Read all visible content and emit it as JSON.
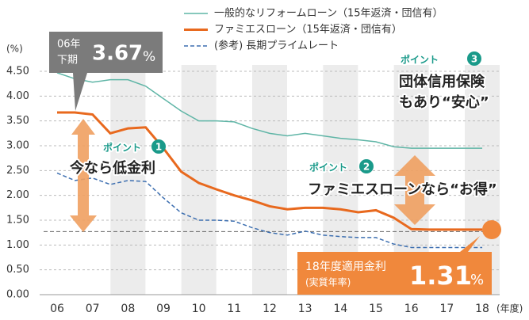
{
  "chart_data": {
    "type": "line",
    "y_unit_label": "(%)",
    "x_unit_label": "(年度)",
    "x": [
      6,
      6.5,
      7,
      7.5,
      8,
      8.5,
      9,
      9.5,
      10,
      10.5,
      11,
      11.5,
      12,
      12.5,
      13,
      13.5,
      14,
      14.5,
      15,
      15.5,
      16,
      16.5,
      17,
      17.5,
      18
    ],
    "xlim": [
      5.78,
      18.5
    ],
    "xticks": [
      {
        "value": 6,
        "label": "06"
      },
      {
        "value": 7,
        "label": "07"
      },
      {
        "value": 8,
        "label": "08"
      },
      {
        "value": 9,
        "label": "09"
      },
      10,
      11,
      12,
      13,
      14,
      15,
      16,
      17,
      18
    ],
    "ylim": [
      0,
      4.5
    ],
    "yticks": [
      {
        "value": 0,
        "label": "0.00"
      },
      {
        "value": 0.5,
        "label": "0.50"
      },
      {
        "value": 1,
        "label": "1.00"
      },
      {
        "value": 1.5,
        "label": "1.50"
      },
      {
        "value": 2,
        "label": "2.00"
      },
      {
        "value": 2.5,
        "label": "2.50"
      },
      {
        "value": 3,
        "label": "3.00"
      },
      {
        "value": 3.5,
        "label": "3.50"
      },
      {
        "value": 4,
        "label": "4.00"
      },
      {
        "value": 4.5,
        "label": "4.50"
      }
    ],
    "grid": true,
    "reference_line": 1.27,
    "series": [
      {
        "name": "一般的なリフォームローン（15年返済・団信有）",
        "color": "#5fb5a6",
        "style": "solid",
        "values": [
          4.47,
          4.35,
          4.28,
          4.33,
          4.33,
          4.2,
          3.95,
          3.7,
          3.5,
          3.5,
          3.48,
          3.35,
          3.25,
          3.2,
          3.25,
          3.2,
          3.15,
          3.12,
          3.08,
          2.98,
          2.95,
          2.95,
          2.95,
          2.95,
          2.95
        ]
      },
      {
        "name": "ファミエスローン（15年返済・団信有）",
        "color": "#e8691e",
        "style": "solid",
        "values": [
          3.67,
          3.67,
          3.63,
          3.25,
          3.35,
          3.37,
          2.95,
          2.48,
          2.25,
          2.12,
          2.0,
          1.9,
          1.78,
          1.72,
          1.75,
          1.75,
          1.72,
          1.66,
          1.7,
          1.55,
          1.32,
          1.31,
          1.31,
          1.31,
          1.31
        ]
      },
      {
        "name": "(参考) 長期プライムレート",
        "color": "#3d6fb0",
        "style": "dashed",
        "values": [
          2.45,
          2.3,
          2.35,
          2.22,
          2.3,
          2.28,
          1.95,
          1.65,
          1.5,
          1.5,
          1.48,
          1.35,
          1.25,
          1.2,
          1.28,
          1.2,
          1.17,
          1.15,
          1.15,
          1.02,
          0.95,
          0.95,
          0.95,
          0.95,
          0.95
        ]
      }
    ],
    "callout_start": {
      "label_1": "06年",
      "label_2": "下期",
      "value": 3.67,
      "unit": "%"
    },
    "callout_end": {
      "label_1": "18年度適用金利",
      "label_2": "(実質年率)",
      "value": 1.31,
      "unit": "%"
    },
    "points": [
      {
        "tag": "ポイント",
        "number": "1",
        "lines": [
          "今なら低金利"
        ]
      },
      {
        "tag": "ポイント",
        "number": "2",
        "lines": [
          "ファミエスローンなら“お得”"
        ]
      },
      {
        "tag": "ポイント",
        "number": "3",
        "lines": [
          "団体信用保険",
          "もあり“安心”"
        ]
      }
    ]
  }
}
